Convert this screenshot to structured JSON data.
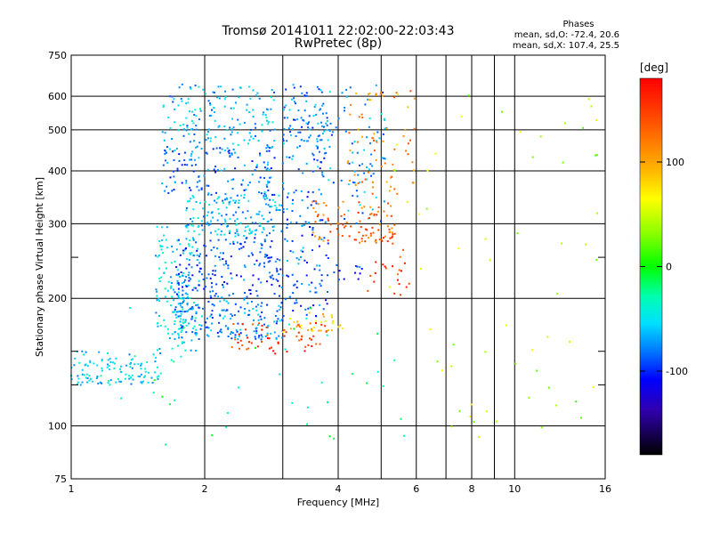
{
  "chart_data": {
    "type": "scatter",
    "title": "Tromsø 20141011 22:02:00-22:03:43",
    "subtitle": "RwPretec (8p)",
    "xlabel": "Frequency [MHz]",
    "ylabel": "Stationary phase Virtual Height [km]",
    "x_scale": "log",
    "y_scale": "log",
    "xlim": [
      1,
      16
    ],
    "ylim": [
      75,
      750
    ],
    "x_ticks": [
      1,
      2,
      4,
      6,
      8,
      10,
      16
    ],
    "x_tick_labels": [
      "1",
      "2",
      "4",
      "6",
      "8",
      "10",
      "16"
    ],
    "x_minor_ticks": [
      3,
      5,
      7,
      9
    ],
    "y_ticks": [
      75,
      100,
      200,
      300,
      400,
      500,
      600,
      750
    ],
    "y_tick_labels": [
      "75",
      "100",
      "200",
      "300",
      "400",
      "500",
      "600",
      "750"
    ],
    "y_minor_ticks": [
      125,
      150,
      250
    ],
    "grid": true,
    "phase_box": {
      "title": "Phases",
      "lines": [
        "mean, sd,O: -72.4, 20.6",
        "mean, sd,X: 107.4, 25.5"
      ]
    },
    "colorbar": {
      "label": "[deg]",
      "range": [
        -180,
        180
      ],
      "ticks": [
        100,
        0,
        -100
      ],
      "tick_labels": [
        "100",
        "0",
        "-100"
      ]
    },
    "clusters": [
      {
        "x": [
          1.0,
          1.6
        ],
        "y": [
          125,
          150
        ],
        "phase": -60,
        "n": 120
      },
      {
        "x": [
          1.55,
          1.95
        ],
        "y": [
          150,
          300
        ],
        "phase": -55,
        "n": 160
      },
      {
        "x": [
          1.7,
          3.0
        ],
        "y": [
          160,
          200
        ],
        "phase": -85,
        "n": 180
      },
      {
        "x": [
          1.7,
          3.0
        ],
        "y": [
          200,
          280
        ],
        "phase": -100,
        "n": 180
      },
      {
        "x": [
          1.8,
          3.0
        ],
        "y": [
          280,
          350
        ],
        "phase": -70,
        "n": 160
      },
      {
        "x": [
          1.6,
          2.9
        ],
        "y": [
          350,
          460
        ],
        "phase": -90,
        "n": 150
      },
      {
        "x": [
          1.6,
          2.9
        ],
        "y": [
          460,
          640
        ],
        "phase": -70,
        "n": 150
      },
      {
        "x": [
          3.0,
          3.8
        ],
        "y": [
          180,
          420
        ],
        "phase": -95,
        "n": 120
      },
      {
        "x": [
          3.0,
          3.8
        ],
        "y": [
          420,
          640
        ],
        "phase": -85,
        "n": 100
      },
      {
        "x": [
          3.6,
          5.2
        ],
        "y": [
          300,
          640
        ],
        "phase": -80,
        "n": 90
      },
      {
        "x": [
          4.2,
          6.0
        ],
        "y": [
          350,
          620
        ],
        "phase": 110,
        "n": 70
      },
      {
        "x": [
          3.5,
          5.4
        ],
        "y": [
          270,
          340
        ],
        "phase": 130,
        "n": 90
      },
      {
        "x": [
          4.6,
          5.8
        ],
        "y": [
          200,
          300
        ],
        "phase": 150,
        "n": 30
      },
      {
        "x": [
          2.3,
          3.8
        ],
        "y": [
          148,
          175
        ],
        "phase": 150,
        "n": 60
      },
      {
        "x": [
          3.0,
          4.1
        ],
        "y": [
          165,
          185
        ],
        "phase": 80,
        "n": 30
      },
      {
        "x": [
          3.9,
          4.6
        ],
        "y": [
          220,
          240
        ],
        "phase": -110,
        "n": 12
      },
      {
        "x": [
          5.0,
          16.0
        ],
        "y": [
          85,
          640
        ],
        "phase": 40,
        "n": 60
      },
      {
        "x": [
          1.2,
          6.0
        ],
        "y": [
          90,
          200
        ],
        "phase": -20,
        "n": 40
      }
    ]
  }
}
